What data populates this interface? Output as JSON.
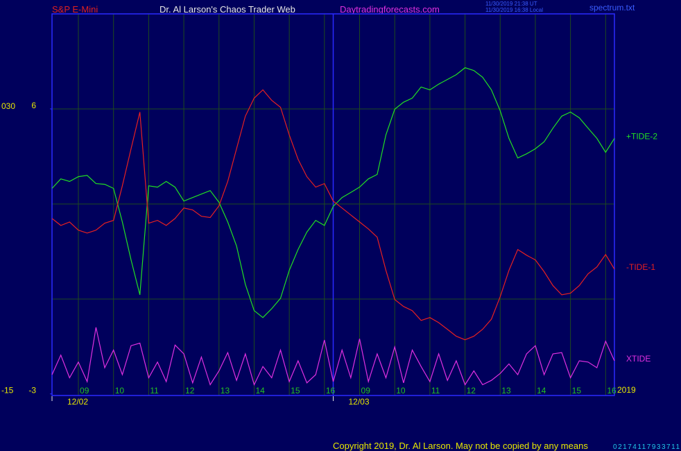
{
  "chart_data": {
    "type": "line",
    "instrument": "S&P E-Mini",
    "title": "Dr. Al Larson's Chaos Trader Web",
    "site": "Daytradingforecasts.com",
    "timestamps": [
      "11/30/2019 21:38 UT",
      "11/30/2019 16:38 Local"
    ],
    "file": "spectrum.txt",
    "year": "2019",
    "dates": [
      "12/02",
      "12/03"
    ],
    "copyright": "Copyright 2019, Dr. Al Larson. May not be copied by any means",
    "footer_code": "02174117933711",
    "categories": [
      null,
      null,
      null,
      "09",
      null,
      null,
      null,
      "10",
      null,
      null,
      null,
      "11",
      null,
      null,
      null,
      "12",
      null,
      null,
      null,
      "13",
      null,
      null,
      null,
      "14",
      null,
      null,
      null,
      "15",
      null,
      null,
      null,
      "16",
      null,
      null,
      null,
      "09",
      null,
      null,
      null,
      "10",
      null,
      null,
      null,
      "11",
      null,
      null,
      null,
      "12",
      null,
      null,
      null,
      "13",
      null,
      null,
      null,
      "14",
      null,
      null,
      null,
      "15",
      null,
      null,
      null,
      "16",
      null
    ],
    "ylim": [
      -3.05,
      9
    ],
    "yticks": [
      -3,
      6
    ],
    "y2lim": [
      -15.3,
      45.2
    ],
    "y2ticks": [
      {
        "value": 30,
        "label": "030"
      },
      -15
    ],
    "grid": true,
    "series": [
      {
        "name": "+TIDE-2",
        "color": "#22e022",
        "values": [
          3.49,
          3.79,
          3.71,
          3.86,
          3.9,
          3.64,
          3.62,
          3.49,
          2.43,
          1.23,
          0.13,
          3.57,
          3.53,
          3.71,
          3.53,
          3.09,
          3.2,
          3.31,
          3.42,
          3.05,
          2.43,
          1.67,
          0.46,
          -0.37,
          -0.59,
          -0.31,
          0.02,
          0.9,
          1.56,
          2.11,
          2.48,
          2.32,
          2.92,
          3.2,
          3.36,
          3.53,
          3.79,
          3.93,
          5.18,
          5.99,
          6.21,
          6.34,
          6.69,
          6.6,
          6.78,
          6.93,
          7.08,
          7.3,
          7.21,
          7.0,
          6.6,
          5.94,
          5.07,
          4.45,
          4.58,
          4.74,
          4.96,
          5.39,
          5.77,
          5.9,
          5.72,
          5.39,
          5.07,
          4.63,
          5.07
        ]
      },
      {
        "name": "-TIDE-1",
        "color": "#e82020",
        "values": [
          2.54,
          2.32,
          2.43,
          2.17,
          2.08,
          2.17,
          2.39,
          2.48,
          3.57,
          4.74,
          5.9,
          2.39,
          2.48,
          2.32,
          2.54,
          2.87,
          2.81,
          2.61,
          2.57,
          2.94,
          3.71,
          4.74,
          5.77,
          6.34,
          6.6,
          6.27,
          6.05,
          5.18,
          4.41,
          3.86,
          3.53,
          3.64,
          3.09,
          2.87,
          2.65,
          2.43,
          2.21,
          1.95,
          0.9,
          -0.02,
          -0.24,
          -0.37,
          -0.68,
          -0.59,
          -0.75,
          -0.96,
          -1.18,
          -1.29,
          -1.18,
          -0.96,
          -0.64,
          0.07,
          0.9,
          1.56,
          1.38,
          1.23,
          0.86,
          0.42,
          0.13,
          0.18,
          0.42,
          0.79,
          1.01,
          1.4,
          0.94
        ]
      },
      {
        "name": "XTIDE",
        "color": "#e030e0",
        "axis": "y2",
        "values": [
          -12.0,
          -8.9,
          -12.5,
          -10.0,
          -13.1,
          -4.5,
          -10.9,
          -8.1,
          -12.0,
          -7.4,
          -7.0,
          -12.5,
          -10.0,
          -13.1,
          -7.3,
          -8.7,
          -13.3,
          -9.2,
          -13.6,
          -11.4,
          -8.5,
          -12.9,
          -8.7,
          -13.6,
          -10.7,
          -12.5,
          -8.1,
          -13.1,
          -9.8,
          -13.3,
          -12.0,
          -6.5,
          -13.1,
          -8.1,
          -12.5,
          -6.3,
          -13.1,
          -8.7,
          -12.5,
          -7.6,
          -13.3,
          -8.1,
          -10.7,
          -13.1,
          -8.7,
          -12.9,
          -9.8,
          -13.6,
          -11.4,
          -13.6,
          -12.9,
          -11.8,
          -10.3,
          -12.0,
          -8.7,
          -7.4,
          -12.0,
          -8.7,
          -8.5,
          -12.5,
          -9.8,
          -10.0,
          -10.9,
          -6.7,
          -9.8
        ]
      }
    ]
  }
}
